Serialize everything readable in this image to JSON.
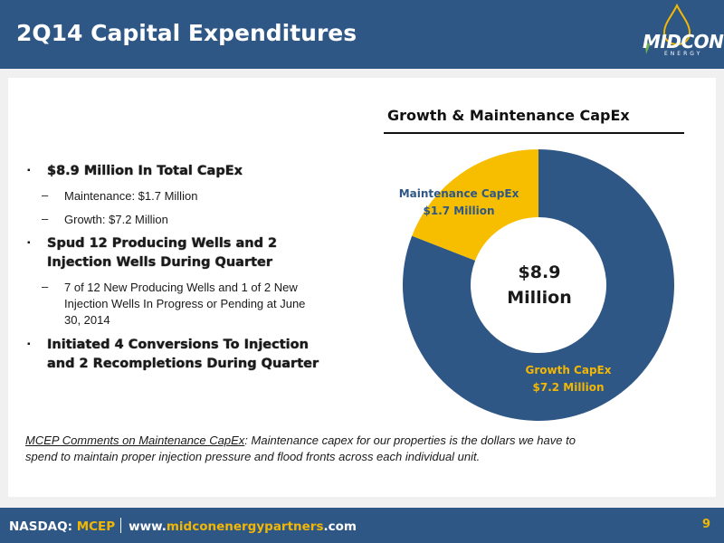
{
  "slide": {
    "title": "2Q14 Capital Expenditures",
    "page_number": "9"
  },
  "logo": {
    "text": "MIDCON",
    "subtext": "ENERGY"
  },
  "bullets": [
    {
      "text": "$8.9 Million In Total CapEx",
      "subs": [
        "Maintenance: $1.7 Million",
        "Growth: $7.2 Million"
      ]
    },
    {
      "line1": "Spud 12 Producing Wells and 2",
      "line2": "Injection Wells During Quarter",
      "subs": [
        {
          "line1": "7 of 12 New Producing Wells  and 1 of 2 New",
          "line2": "Injection Wells In Progress or Pending at June",
          "line3": "30, 2014"
        }
      ]
    },
    {
      "line1": "Initiated 4 Conversions To Injection",
      "line2": "and 2 Recompletions During Quarter"
    }
  ],
  "chart_data": {
    "type": "pie",
    "title": "Growth & Maintenance CapEx",
    "donut": true,
    "center_label": {
      "line1": "$8.9",
      "line2": "Million"
    },
    "total": 8.9,
    "unit": "$ Million",
    "slices": [
      {
        "name": "Growth CapEx",
        "value": 7.2,
        "label": "$7.2 Million",
        "color": "#2f5786",
        "label_color": "#f2b705"
      },
      {
        "name": "Maintenance CapEx",
        "value": 1.7,
        "label": "$1.7 Million",
        "color": "#f7be00",
        "label_color": "#2f5786"
      }
    ]
  },
  "comment": {
    "heading": "MCEP Comments on Maintenance CapEx",
    "body_line1": ": Maintenance capex for our properties is the dollars we have to",
    "body_line2": "spend to maintain proper injection pressure and flood fronts across each individual unit."
  },
  "footer": {
    "exchange": "NASDAQ: ",
    "ticker": "MCEP",
    "url_prefix": "www.",
    "url_domain": "midconenergypartners",
    "url_suffix": ".com"
  },
  "colors": {
    "brand_blue": "#2f5786",
    "accent_yellow": "#f2b705"
  }
}
